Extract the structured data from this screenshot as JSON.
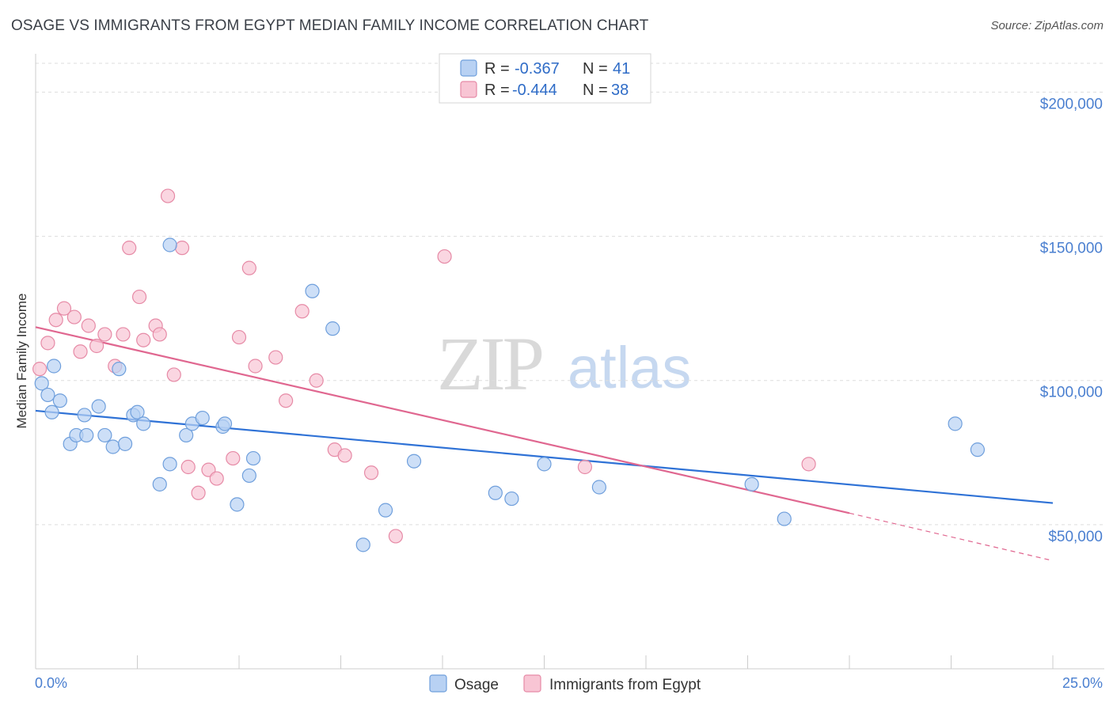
{
  "title": "OSAGE VS IMMIGRANTS FROM EGYPT MEDIAN FAMILY INCOME CORRELATION CHART",
  "source": "Source: ZipAtlas.com",
  "watermark": {
    "zip": "ZIP",
    "atlas": "atlas"
  },
  "colors": {
    "osage_fill": "#b8d1f3",
    "osage_stroke": "#6f9fdc",
    "osage_line": "#2f72d6",
    "egypt_fill": "#f8c5d4",
    "egypt_stroke": "#e68aa6",
    "egypt_line": "#e06790",
    "grid": "#dddddd",
    "axis_text": "#4a7fd0"
  },
  "legend": {
    "osage": {
      "r_label": "R = ",
      "r_value": "-0.367",
      "n_label": "N = ",
      "n_value": "41"
    },
    "egypt": {
      "r_label": "R = ",
      "r_value": "-0.444",
      "n_label": "N = ",
      "n_value": "38"
    }
  },
  "chart_data": {
    "type": "scatter",
    "title": "OSAGE VS IMMIGRANTS FROM EGYPT MEDIAN FAMILY INCOME CORRELATION CHART",
    "xlabel": "",
    "ylabel": "Median Family Income",
    "xlim": [
      0,
      25
    ],
    "ylim": [
      0,
      210000
    ],
    "x_tick_labels": [
      "0.0%",
      "25.0%"
    ],
    "y_ticks": [
      50000,
      100000,
      150000,
      200000
    ],
    "y_tick_labels": [
      "$50,000",
      "$100,000",
      "$150,000",
      "$200,000"
    ],
    "grid": true,
    "legend_position": "top-center",
    "series": [
      {
        "name": "Osage",
        "points": [
          [
            0.15,
            99000
          ],
          [
            0.3,
            95000
          ],
          [
            0.45,
            105000
          ],
          [
            0.4,
            89000
          ],
          [
            0.6,
            93000
          ],
          [
            0.85,
            78000
          ],
          [
            1.0,
            81000
          ],
          [
            1.25,
            81000
          ],
          [
            1.2,
            88000
          ],
          [
            1.55,
            91000
          ],
          [
            1.7,
            81000
          ],
          [
            1.9,
            77000
          ],
          [
            2.05,
            104000
          ],
          [
            2.2,
            78000
          ],
          [
            2.4,
            88000
          ],
          [
            2.5,
            89000
          ],
          [
            2.65,
            85000
          ],
          [
            3.05,
            64000
          ],
          [
            3.3,
            71000
          ],
          [
            3.3,
            147000
          ],
          [
            3.7,
            81000
          ],
          [
            3.85,
            85000
          ],
          [
            4.1,
            87000
          ],
          [
            4.6,
            84000
          ],
          [
            4.65,
            85000
          ],
          [
            4.95,
            57000
          ],
          [
            5.25,
            67000
          ],
          [
            5.35,
            73000
          ],
          [
            6.8,
            131000
          ],
          [
            7.3,
            118000
          ],
          [
            8.05,
            43000
          ],
          [
            8.6,
            55000
          ],
          [
            9.3,
            72000
          ],
          [
            11.3,
            61000
          ],
          [
            11.7,
            59000
          ],
          [
            12.5,
            71000
          ],
          [
            13.85,
            63000
          ],
          [
            17.6,
            64000
          ],
          [
            18.4,
            52000
          ],
          [
            22.6,
            85000
          ],
          [
            23.15,
            76000
          ]
        ],
        "trend": {
          "x0": 0.0,
          "y0": 89500,
          "x1": 25.0,
          "y1": 57500
        }
      },
      {
        "name": "Immigrants from Egypt",
        "points": [
          [
            0.1,
            104000
          ],
          [
            0.3,
            113000
          ],
          [
            0.5,
            121000
          ],
          [
            0.7,
            125000
          ],
          [
            0.95,
            122000
          ],
          [
            1.1,
            110000
          ],
          [
            1.3,
            119000
          ],
          [
            1.5,
            112000
          ],
          [
            1.7,
            116000
          ],
          [
            1.95,
            105000
          ],
          [
            2.15,
            116000
          ],
          [
            2.3,
            146000
          ],
          [
            2.55,
            129000
          ],
          [
            2.65,
            114000
          ],
          [
            2.95,
            119000
          ],
          [
            3.05,
            116000
          ],
          [
            3.25,
            164000
          ],
          [
            3.4,
            102000
          ],
          [
            3.6,
            146000
          ],
          [
            3.75,
            70000
          ],
          [
            4.0,
            61000
          ],
          [
            4.25,
            69000
          ],
          [
            4.45,
            66000
          ],
          [
            4.85,
            73000
          ],
          [
            5.0,
            115000
          ],
          [
            5.25,
            139000
          ],
          [
            5.4,
            105000
          ],
          [
            5.9,
            108000
          ],
          [
            6.15,
            93000
          ],
          [
            6.55,
            124000
          ],
          [
            6.9,
            100000
          ],
          [
            7.35,
            76000
          ],
          [
            7.6,
            74000
          ],
          [
            8.25,
            68000
          ],
          [
            8.85,
            46000
          ],
          [
            10.05,
            143000
          ],
          [
            13.5,
            70000
          ],
          [
            19.0,
            71000
          ]
        ],
        "trend": {
          "x0": 0.0,
          "y0": 118500,
          "x1": 20.0,
          "y1": 54000
        },
        "trend_dashed": {
          "x0": 20.0,
          "y0": 54000,
          "x1": 25.0,
          "y1": 37500
        }
      }
    ]
  }
}
